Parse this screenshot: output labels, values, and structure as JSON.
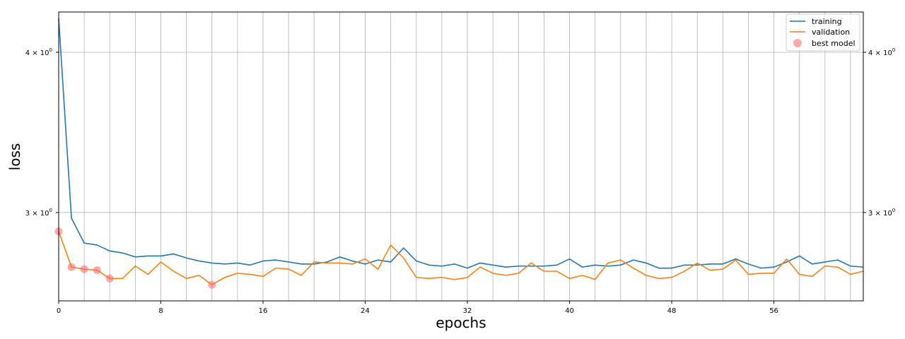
{
  "chart_data": {
    "type": "line",
    "xlabel": "epochs",
    "ylabel": "loss",
    "yscale": "log",
    "xlim": [
      0,
      63
    ],
    "ylim": [
      2.56,
      4.3
    ],
    "grid": true,
    "legend_position": "top-right",
    "x_ticks": [
      0,
      8,
      16,
      24,
      32,
      40,
      48,
      56
    ],
    "x_minor_gridlines": [
      0,
      2,
      4,
      6,
      8,
      10,
      12,
      14,
      16,
      18,
      20,
      22,
      24,
      26,
      28,
      30,
      32,
      34,
      36,
      38,
      40,
      42,
      44,
      46,
      48,
      50,
      52,
      54,
      56,
      58,
      60,
      62
    ],
    "y_ticks": [
      {
        "value": 3.0,
        "base": "3",
        "exp": "0"
      },
      {
        "value": 4.0,
        "base": "4",
        "exp": "0"
      }
    ],
    "series": [
      {
        "name": "training",
        "color": "#1f77b4",
        "x": [
          0,
          1,
          2,
          3,
          4,
          5,
          6,
          7,
          8,
          9,
          10,
          11,
          12,
          13,
          14,
          15,
          16,
          17,
          18,
          19,
          20,
          21,
          22,
          23,
          24,
          25,
          26,
          27,
          28,
          29,
          30,
          31,
          32,
          33,
          34,
          35,
          36,
          37,
          38,
          39,
          40,
          41,
          42,
          43,
          44,
          45,
          46,
          47,
          48,
          49,
          50,
          51,
          52,
          53,
          54,
          55,
          56,
          57,
          58,
          59,
          60,
          61,
          62,
          63
        ],
        "values": [
          4.25,
          2.97,
          2.84,
          2.83,
          2.8,
          2.79,
          2.77,
          2.775,
          2.775,
          2.785,
          2.765,
          2.75,
          2.74,
          2.735,
          2.74,
          2.73,
          2.75,
          2.755,
          2.745,
          2.735,
          2.735,
          2.745,
          2.77,
          2.75,
          2.735,
          2.755,
          2.745,
          2.815,
          2.75,
          2.73,
          2.725,
          2.735,
          2.715,
          2.74,
          2.73,
          2.72,
          2.725,
          2.725,
          2.725,
          2.73,
          2.76,
          2.72,
          2.73,
          2.725,
          2.73,
          2.755,
          2.74,
          2.715,
          2.715,
          2.73,
          2.73,
          2.735,
          2.735,
          2.76,
          2.735,
          2.715,
          2.72,
          2.745,
          2.775,
          2.735,
          2.745,
          2.755,
          2.725,
          2.72
        ]
      },
      {
        "name": "validation",
        "color": "#ff7f0e",
        "x": [
          0,
          1,
          2,
          3,
          4,
          5,
          6,
          7,
          8,
          9,
          10,
          11,
          12,
          13,
          14,
          15,
          16,
          17,
          18,
          19,
          20,
          21,
          22,
          23,
          24,
          25,
          26,
          27,
          28,
          29,
          30,
          31,
          32,
          33,
          34,
          35,
          36,
          37,
          38,
          39,
          40,
          41,
          42,
          43,
          44,
          45,
          46,
          47,
          48,
          49,
          50,
          51,
          52,
          53,
          54,
          55,
          56,
          57,
          58,
          59,
          60,
          61,
          62,
          63
        ],
        "values": [
          2.9,
          2.72,
          2.71,
          2.705,
          2.665,
          2.665,
          2.725,
          2.685,
          2.745,
          2.7,
          2.665,
          2.68,
          2.635,
          2.67,
          2.69,
          2.685,
          2.675,
          2.715,
          2.71,
          2.68,
          2.745,
          2.74,
          2.74,
          2.735,
          2.76,
          2.71,
          2.83,
          2.765,
          2.67,
          2.665,
          2.67,
          2.66,
          2.67,
          2.72,
          2.69,
          2.68,
          2.69,
          2.74,
          2.7,
          2.7,
          2.665,
          2.68,
          2.66,
          2.74,
          2.755,
          2.715,
          2.68,
          2.665,
          2.67,
          2.7,
          2.74,
          2.705,
          2.71,
          2.755,
          2.685,
          2.69,
          2.69,
          2.76,
          2.685,
          2.675,
          2.725,
          2.72,
          2.685,
          2.7
        ]
      },
      {
        "name": "best model",
        "color": "#ff6464",
        "marker": "circle",
        "x": [
          0,
          1,
          2,
          3,
          4,
          12
        ],
        "values": [
          2.9,
          2.72,
          2.71,
          2.705,
          2.665,
          2.635
        ]
      }
    ]
  }
}
